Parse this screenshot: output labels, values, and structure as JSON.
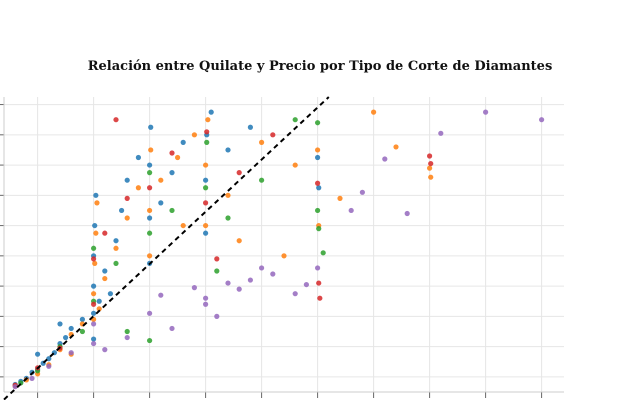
{
  "chart_data": {
    "type": "scatter",
    "title": "Relación entre Quilate y Precio por Tipo de Corte de Diamantes",
    "xlabel": "",
    "ylabel": "",
    "xlim": [
      0.2,
      5.2
    ],
    "ylim": [
      0,
      19500
    ],
    "x_ticks": [
      0.5,
      1.0,
      1.5,
      2.0,
      2.5,
      3.0,
      3.5,
      4.0,
      4.5,
      5.0
    ],
    "y_ticks": [
      1000,
      3000,
      5000,
      7000,
      9000,
      11000,
      13000,
      15000,
      17000,
      19000
    ],
    "grid": true,
    "legend": "none",
    "trend_line": {
      "style": "dashed",
      "color": "#000000",
      "points": [
        [
          0.2,
          -500
        ],
        [
          3.1,
          19500
        ]
      ]
    },
    "series": [
      {
        "color": "#1f77b4",
        "points": [
          [
            0.3,
            500
          ],
          [
            0.35,
            700
          ],
          [
            0.4,
            900
          ],
          [
            0.45,
            1300
          ],
          [
            0.5,
            1500
          ],
          [
            0.55,
            1900
          ],
          [
            0.6,
            2200
          ],
          [
            0.65,
            2600
          ],
          [
            0.7,
            3200
          ],
          [
            0.75,
            3600
          ],
          [
            0.8,
            4200
          ],
          [
            0.9,
            4800
          ],
          [
            1.0,
            5200
          ],
          [
            1.0,
            7000
          ],
          [
            1.0,
            9000
          ],
          [
            1.01,
            11000
          ],
          [
            1.02,
            13000
          ],
          [
            1.05,
            6000
          ],
          [
            1.1,
            8000
          ],
          [
            1.2,
            10000
          ],
          [
            1.25,
            12000
          ],
          [
            1.3,
            14000
          ],
          [
            1.4,
            15500
          ],
          [
            1.5,
            8500
          ],
          [
            1.5,
            11500
          ],
          [
            1.5,
            15000
          ],
          [
            1.51,
            17500
          ],
          [
            1.6,
            12500
          ],
          [
            1.7,
            14500
          ],
          [
            1.8,
            16500
          ],
          [
            2.0,
            10500
          ],
          [
            2.0,
            14000
          ],
          [
            2.01,
            17000
          ],
          [
            2.05,
            18500
          ],
          [
            2.2,
            16000
          ],
          [
            2.4,
            17500
          ],
          [
            3.0,
            15500
          ],
          [
            3.01,
            13500
          ],
          [
            0.5,
            2500
          ],
          [
            0.7,
            4500
          ],
          [
            1.0,
            3500
          ],
          [
            1.15,
            6500
          ]
        ]
      },
      {
        "color": "#ff7f0e",
        "points": [
          [
            0.3,
            400
          ],
          [
            0.4,
            800
          ],
          [
            0.5,
            1200
          ],
          [
            0.6,
            1800
          ],
          [
            0.7,
            2800
          ],
          [
            0.8,
            3800
          ],
          [
            0.9,
            4500
          ],
          [
            1.0,
            4800
          ],
          [
            1.0,
            6500
          ],
          [
            1.01,
            8500
          ],
          [
            1.02,
            10500
          ],
          [
            1.03,
            12500
          ],
          [
            1.1,
            7500
          ],
          [
            1.2,
            9500
          ],
          [
            1.3,
            11500
          ],
          [
            1.4,
            13500
          ],
          [
            1.5,
            9000
          ],
          [
            1.5,
            12000
          ],
          [
            1.51,
            16000
          ],
          [
            1.6,
            14000
          ],
          [
            1.75,
            15500
          ],
          [
            1.9,
            17000
          ],
          [
            2.0,
            11000
          ],
          [
            2.0,
            15000
          ],
          [
            2.02,
            18000
          ],
          [
            2.2,
            13000
          ],
          [
            2.5,
            16500
          ],
          [
            2.7,
            9000
          ],
          [
            2.8,
            15000
          ],
          [
            3.0,
            16000
          ],
          [
            3.01,
            11000
          ],
          [
            3.5,
            18500
          ],
          [
            3.7,
            16200
          ],
          [
            4.0,
            14800
          ],
          [
            4.01,
            14200
          ],
          [
            3.2,
            12800
          ],
          [
            2.3,
            10000
          ],
          [
            1.8,
            11000
          ],
          [
            0.8,
            2500
          ],
          [
            1.05,
            5500
          ]
        ]
      },
      {
        "color": "#2ca02c",
        "points": [
          [
            0.35,
            600
          ],
          [
            0.5,
            1400
          ],
          [
            0.7,
            3000
          ],
          [
            0.9,
            4000
          ],
          [
            1.0,
            6000
          ],
          [
            1.0,
            9500
          ],
          [
            1.2,
            8500
          ],
          [
            1.5,
            10500
          ],
          [
            1.5,
            14500
          ],
          [
            1.7,
            12000
          ],
          [
            2.0,
            13500
          ],
          [
            2.01,
            16500
          ],
          [
            2.2,
            11500
          ],
          [
            2.5,
            14000
          ],
          [
            2.8,
            18000
          ],
          [
            3.0,
            17800
          ],
          [
            3.0,
            12000
          ],
          [
            3.01,
            10800
          ],
          [
            3.05,
            9200
          ],
          [
            1.5,
            3400
          ],
          [
            1.3,
            4000
          ],
          [
            2.1,
            8000
          ]
        ]
      },
      {
        "color": "#d62728",
        "points": [
          [
            0.3,
            450
          ],
          [
            0.5,
            1600
          ],
          [
            0.7,
            2900
          ],
          [
            1.0,
            5800
          ],
          [
            1.0,
            8800
          ],
          [
            1.1,
            10500
          ],
          [
            1.3,
            12800
          ],
          [
            1.5,
            13500
          ],
          [
            1.7,
            15800
          ],
          [
            2.0,
            12500
          ],
          [
            2.01,
            17200
          ],
          [
            2.3,
            14500
          ],
          [
            2.6,
            17000
          ],
          [
            3.0,
            13800
          ],
          [
            3.01,
            7200
          ],
          [
            3.02,
            6200
          ],
          [
            4.0,
            15600
          ],
          [
            4.01,
            15100
          ],
          [
            1.2,
            18000
          ],
          [
            2.1,
            8800
          ]
        ]
      },
      {
        "color": "#9467bd",
        "points": [
          [
            0.3,
            350
          ],
          [
            0.45,
            900
          ],
          [
            0.6,
            1700
          ],
          [
            0.8,
            2600
          ],
          [
            1.0,
            3200
          ],
          [
            1.0,
            4500
          ],
          [
            1.1,
            2800
          ],
          [
            1.3,
            3600
          ],
          [
            1.5,
            5200
          ],
          [
            1.7,
            4200
          ],
          [
            2.0,
            5800
          ],
          [
            2.0,
            6200
          ],
          [
            2.1,
            5000
          ],
          [
            2.2,
            7200
          ],
          [
            2.3,
            6800
          ],
          [
            2.4,
            7400
          ],
          [
            2.5,
            8200
          ],
          [
            2.6,
            7800
          ],
          [
            2.8,
            6500
          ],
          [
            2.9,
            7100
          ],
          [
            3.0,
            8200
          ],
          [
            3.3,
            12000
          ],
          [
            3.4,
            13200
          ],
          [
            3.6,
            15400
          ],
          [
            3.8,
            11800
          ],
          [
            4.1,
            17100
          ],
          [
            4.5,
            18500
          ],
          [
            5.0,
            18000
          ],
          [
            1.6,
            6400
          ],
          [
            1.9,
            6900
          ]
        ]
      }
    ]
  }
}
